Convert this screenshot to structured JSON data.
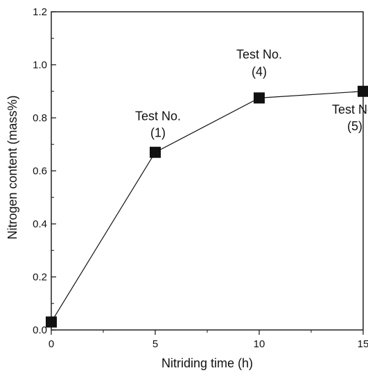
{
  "chart_data": {
    "type": "line",
    "title": "",
    "xlabel": "Nitriding time (h)",
    "ylabel": "Nitrogen content (mass%)",
    "xlim": [
      0,
      15
    ],
    "ylim": [
      0.0,
      1.2
    ],
    "x_ticks": [
      0,
      5,
      10,
      15
    ],
    "x_tick_labels": [
      "0",
      "5",
      "10",
      "15"
    ],
    "y_ticks": [
      0.0,
      0.2,
      0.4,
      0.6,
      0.8,
      1.0,
      1.2
    ],
    "y_tick_labels": [
      "0.0",
      "0.2",
      "0.4",
      "0.6",
      "0.8",
      "1.0",
      "1.2"
    ],
    "grid": false,
    "marker": "square",
    "line_color": "#111111",
    "marker_color": "#111111",
    "series": [
      {
        "x": [
          0,
          5,
          10,
          15
        ],
        "values": [
          0.03,
          0.67,
          0.875,
          0.9
        ]
      }
    ],
    "annotations": [
      {
        "line1": "Test No.",
        "line2": "(1)",
        "point_index": 1
      },
      {
        "line1": "Test No.",
        "line2": "(4)",
        "point_index": 2
      },
      {
        "line1": "Test No.",
        "line2": "(5)",
        "point_index": 3
      }
    ]
  }
}
